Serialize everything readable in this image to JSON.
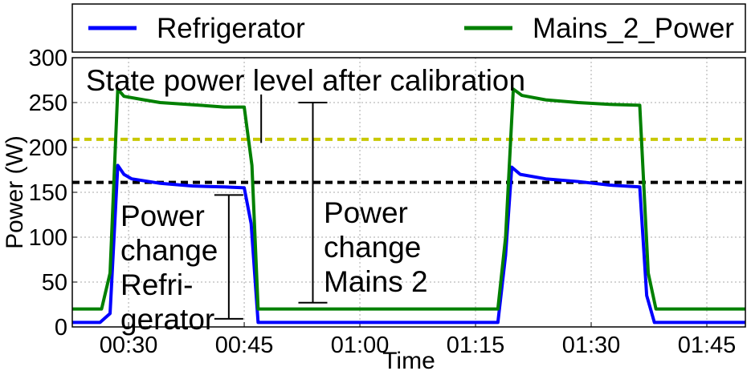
{
  "chart_data": {
    "type": "line",
    "xlabel": "Time",
    "ylabel": "Power (W)",
    "xlim": [
      22.7,
      110
    ],
    "ylim": [
      0,
      300
    ],
    "xticks": [
      {
        "value": 30,
        "label": "00:30"
      },
      {
        "value": 45,
        "label": "00:45"
      },
      {
        "value": 60,
        "label": "01:00"
      },
      {
        "value": 75,
        "label": "01:15"
      },
      {
        "value": 90,
        "label": "01:30"
      },
      {
        "value": 105,
        "label": "01:45"
      }
    ],
    "yticks": [
      0,
      50,
      100,
      150,
      200,
      250,
      300
    ],
    "grid": true,
    "series": [
      {
        "name": "Refrigerator",
        "color": "#0000ff",
        "x": [
          22.7,
          26.3,
          27.6,
          28.6,
          29.4,
          30.4,
          34.1,
          38.3,
          42.4,
          45,
          45.9,
          46.8,
          77.9,
          78.9,
          79.7,
          80.8,
          84.1,
          88.3,
          92.4,
          96.3,
          97.2,
          98.2,
          110
        ],
        "values": [
          5,
          5,
          15,
          180,
          170,
          165,
          160,
          157,
          156,
          155,
          115,
          5,
          5,
          80,
          178,
          170,
          165,
          162,
          158,
          156,
          35,
          5,
          5
        ]
      },
      {
        "name": "Mains_2_Power",
        "color": "#008000",
        "x": [
          22.7,
          26.5,
          27.6,
          28.6,
          29.4,
          32,
          34.1,
          39.3,
          42.4,
          45,
          46,
          46.8,
          77.9,
          78.9,
          79.9,
          81,
          84.1,
          88.3,
          92.4,
          96.3,
          97.4,
          98.4,
          110
        ],
        "values": [
          20,
          20,
          60,
          265,
          257,
          253,
          250,
          247,
          245,
          245,
          180,
          20,
          20,
          100,
          265,
          258,
          253,
          250,
          248,
          247,
          60,
          20,
          20
        ]
      }
    ],
    "hlines": [
      {
        "value": 209,
        "color": "#c8c800"
      },
      {
        "value": 161,
        "color": "#000000"
      }
    ],
    "brackets": [
      {
        "x": 43.0,
        "y1": 9,
        "y2": 147
      },
      {
        "x": 53.9,
        "y1": 27,
        "y2": 250
      }
    ],
    "marker_line": {
      "x": 47.2,
      "y1": 205,
      "y2": 259
    },
    "annotations": [
      {
        "lines": [
          "State power level after calibration"
        ]
      },
      {
        "lines": [
          "Power",
          "change",
          "Refri-",
          "gerator"
        ]
      },
      {
        "lines": [
          "Power",
          "change",
          "Mains 2"
        ]
      }
    ]
  }
}
